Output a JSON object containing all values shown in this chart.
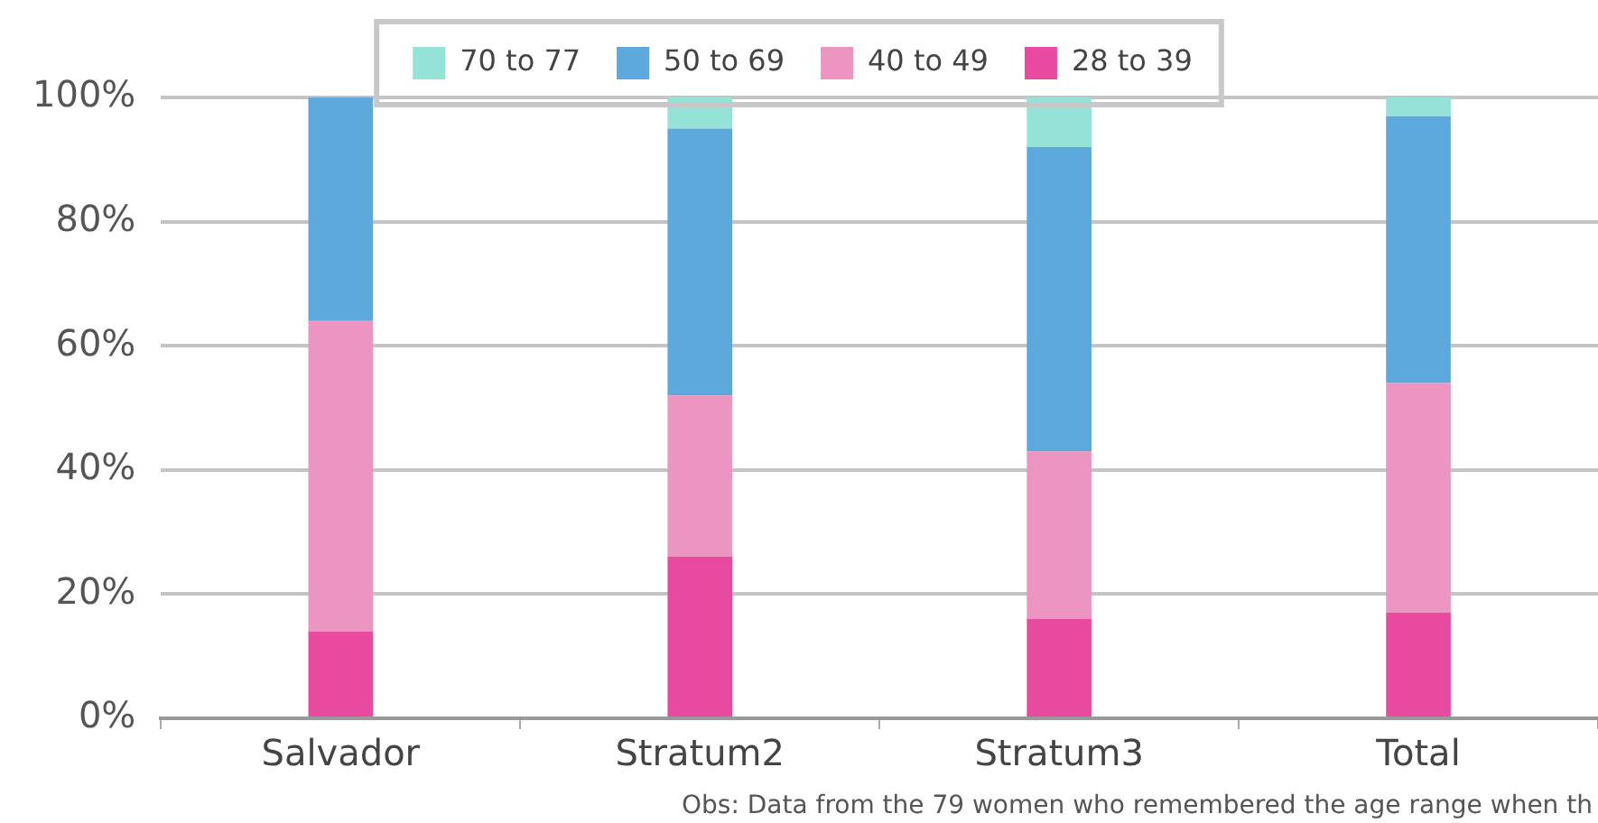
{
  "chart_data": {
    "type": "bar",
    "stacked": true,
    "categories": [
      "Salvador",
      "Stratum2",
      "Stratum3",
      "Total"
    ],
    "series": [
      {
        "name": "28 to 39",
        "color": "#e84a9f",
        "values": [
          14,
          26,
          16,
          17
        ]
      },
      {
        "name": "40 to 49",
        "color": "#eb95c0",
        "values": [
          50,
          26,
          27,
          37
        ]
      },
      {
        "name": "50 to 69",
        "color": "#5da8dc",
        "values": [
          36,
          43,
          49,
          43
        ]
      },
      {
        "name": "70 to 77",
        "color": "#94e3d6",
        "values": [
          0,
          5,
          8,
          3
        ]
      }
    ],
    "ylim": [
      0,
      100
    ],
    "yticks": [
      {
        "value": 0,
        "label": "0%"
      },
      {
        "value": 20,
        "label": "20%"
      },
      {
        "value": 40,
        "label": "40%"
      },
      {
        "value": 60,
        "label": "60%"
      },
      {
        "value": 80,
        "label": "80%"
      },
      {
        "value": 100,
        "label": "100%"
      }
    ],
    "grid": "y",
    "legend": "top",
    "annotations": [
      "Obs: Data from the 79 women who remembered the age range when th"
    ]
  }
}
